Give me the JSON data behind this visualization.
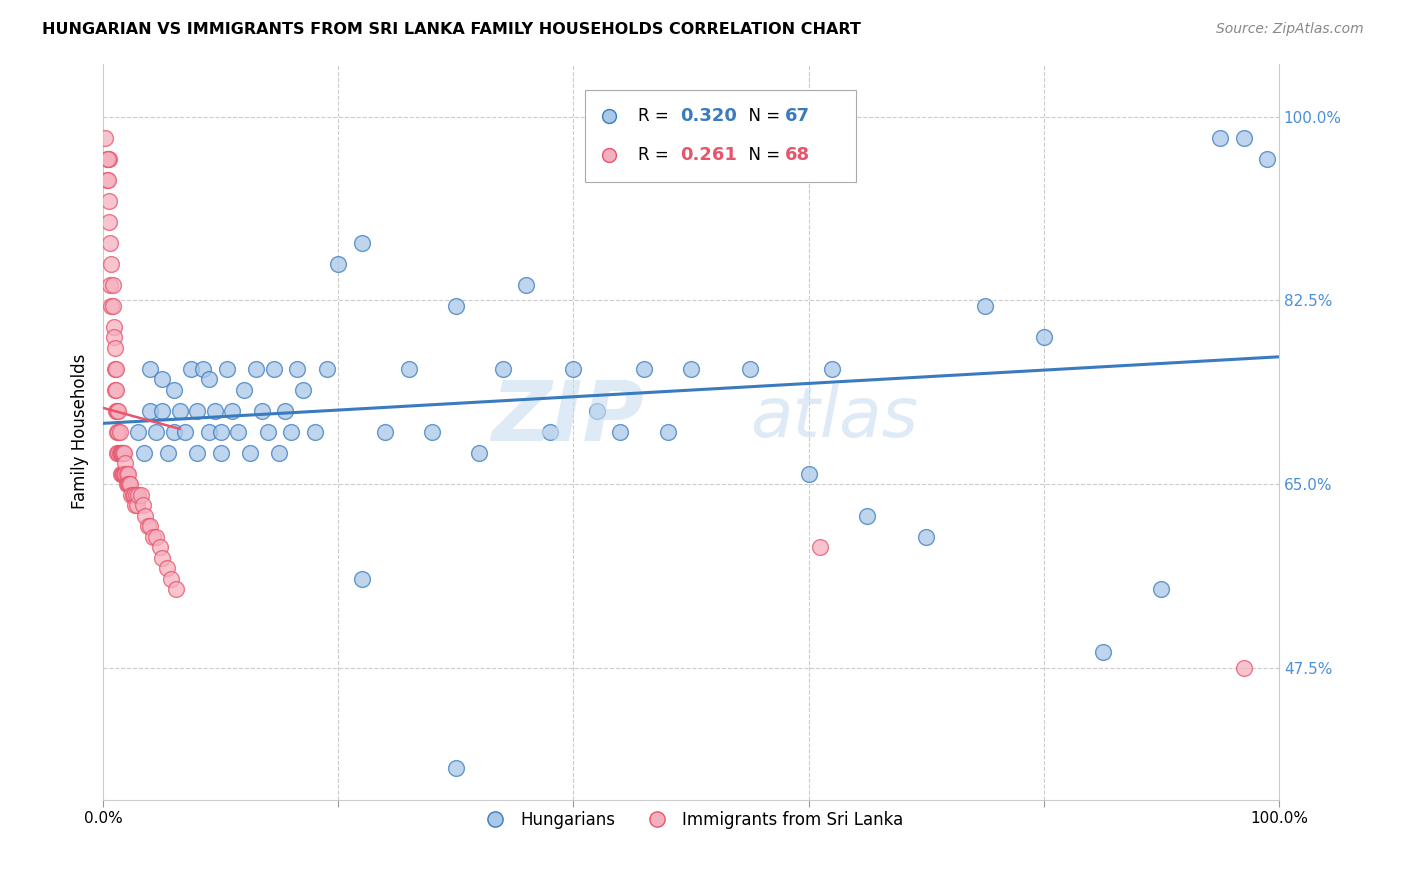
{
  "title": "HUNGARIAN VS IMMIGRANTS FROM SRI LANKA FAMILY HOUSEHOLDS CORRELATION CHART",
  "source": "Source: ZipAtlas.com",
  "ylabel": "Family Households",
  "legend_blue_R": "0.320",
  "legend_blue_N": "67",
  "legend_pink_R": "0.261",
  "legend_pink_N": "68",
  "legend_blue_label": "Hungarians",
  "legend_pink_label": "Immigrants from Sri Lanka",
  "blue_color": "#a8c8e8",
  "blue_line_color": "#3a7bbf",
  "pink_color": "#f5b0c0",
  "pink_line_color": "#e8546a",
  "blue_scatter_x": [
    0.03,
    0.035,
    0.04,
    0.04,
    0.045,
    0.05,
    0.05,
    0.055,
    0.06,
    0.06,
    0.065,
    0.07,
    0.075,
    0.08,
    0.08,
    0.085,
    0.09,
    0.09,
    0.095,
    0.1,
    0.1,
    0.105,
    0.11,
    0.115,
    0.12,
    0.125,
    0.13,
    0.135,
    0.14,
    0.145,
    0.15,
    0.155,
    0.16,
    0.165,
    0.17,
    0.18,
    0.19,
    0.2,
    0.22,
    0.24,
    0.26,
    0.28,
    0.3,
    0.32,
    0.34,
    0.36,
    0.38,
    0.4,
    0.42,
    0.44,
    0.46,
    0.48,
    0.5,
    0.55,
    0.6,
    0.62,
    0.65,
    0.7,
    0.75,
    0.8,
    0.85,
    0.9,
    0.95,
    0.97,
    0.99,
    0.3,
    0.22
  ],
  "blue_scatter_y": [
    0.7,
    0.68,
    0.72,
    0.76,
    0.7,
    0.72,
    0.75,
    0.68,
    0.74,
    0.7,
    0.72,
    0.7,
    0.76,
    0.68,
    0.72,
    0.76,
    0.7,
    0.75,
    0.72,
    0.7,
    0.68,
    0.76,
    0.72,
    0.7,
    0.74,
    0.68,
    0.76,
    0.72,
    0.7,
    0.76,
    0.68,
    0.72,
    0.7,
    0.76,
    0.74,
    0.7,
    0.76,
    0.86,
    0.88,
    0.7,
    0.76,
    0.7,
    0.82,
    0.68,
    0.76,
    0.84,
    0.7,
    0.76,
    0.72,
    0.7,
    0.76,
    0.7,
    0.76,
    0.76,
    0.66,
    0.76,
    0.62,
    0.6,
    0.82,
    0.79,
    0.49,
    0.55,
    0.98,
    0.98,
    0.96,
    0.38,
    0.56
  ],
  "pink_scatter_x": [
    0.005,
    0.005,
    0.006,
    0.006,
    0.007,
    0.007,
    0.008,
    0.008,
    0.009,
    0.009,
    0.01,
    0.01,
    0.01,
    0.011,
    0.011,
    0.011,
    0.012,
    0.012,
    0.012,
    0.013,
    0.013,
    0.013,
    0.014,
    0.014,
    0.015,
    0.015,
    0.015,
    0.016,
    0.016,
    0.017,
    0.017,
    0.018,
    0.018,
    0.019,
    0.019,
    0.02,
    0.02,
    0.021,
    0.021,
    0.022,
    0.023,
    0.024,
    0.025,
    0.026,
    0.027,
    0.028,
    0.029,
    0.03,
    0.032,
    0.034,
    0.036,
    0.038,
    0.04,
    0.042,
    0.045,
    0.048,
    0.05,
    0.054,
    0.058,
    0.062,
    0.002,
    0.003,
    0.003,
    0.004,
    0.004,
    0.005,
    0.61,
    0.97
  ],
  "pink_scatter_y": [
    0.96,
    0.9,
    0.88,
    0.84,
    0.86,
    0.82,
    0.84,
    0.82,
    0.8,
    0.79,
    0.78,
    0.76,
    0.74,
    0.76,
    0.74,
    0.72,
    0.72,
    0.7,
    0.68,
    0.72,
    0.7,
    0.68,
    0.7,
    0.68,
    0.68,
    0.66,
    0.68,
    0.68,
    0.66,
    0.68,
    0.66,
    0.68,
    0.66,
    0.67,
    0.66,
    0.66,
    0.65,
    0.66,
    0.65,
    0.65,
    0.65,
    0.64,
    0.64,
    0.64,
    0.63,
    0.64,
    0.63,
    0.64,
    0.64,
    0.63,
    0.62,
    0.61,
    0.61,
    0.6,
    0.6,
    0.59,
    0.58,
    0.57,
    0.56,
    0.55,
    0.98,
    0.96,
    0.94,
    0.96,
    0.94,
    0.92,
    0.59,
    0.475
  ]
}
